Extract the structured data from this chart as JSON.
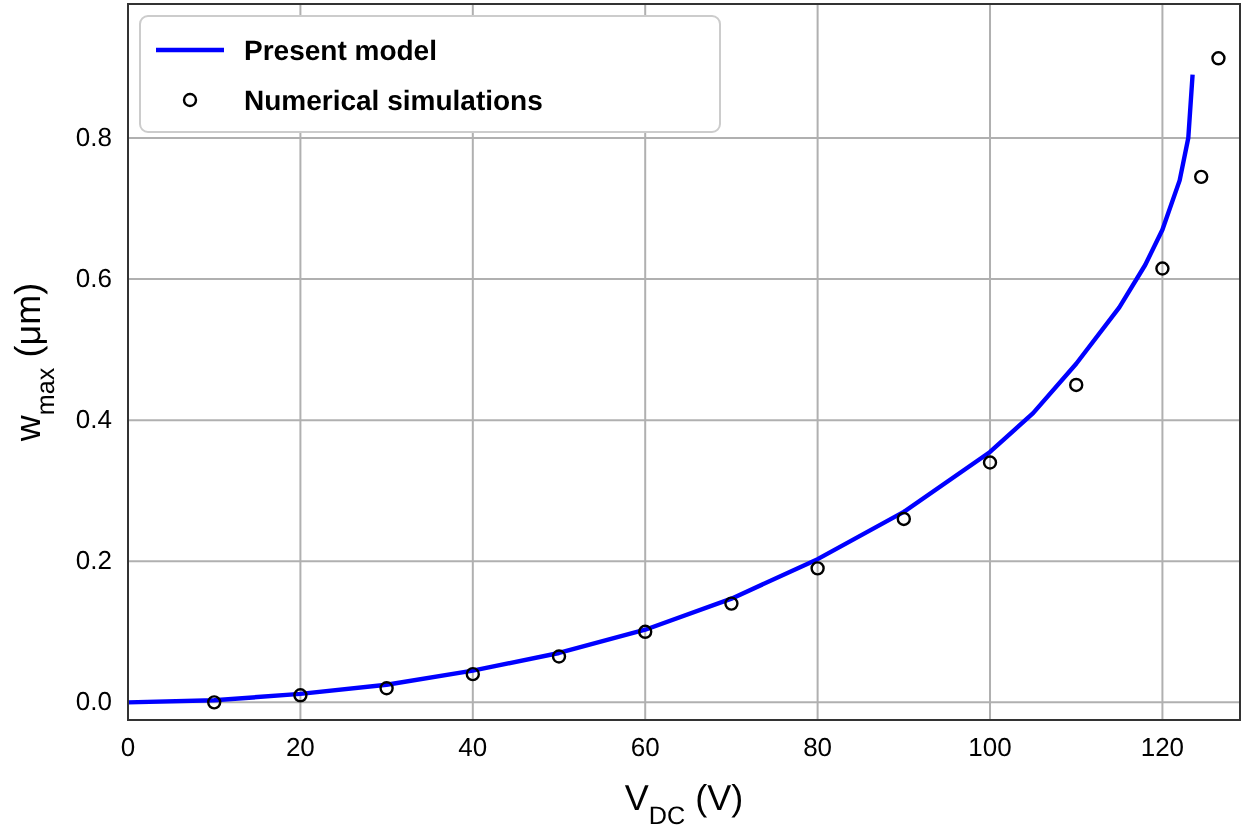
{
  "chart_data": {
    "type": "line",
    "xlabel": "V$_{DC}$ (V)",
    "ylabel": "w$_{max}$ (μm)",
    "xlim": [
      0,
      129
    ],
    "ylim": [
      -0.025,
      0.99
    ],
    "xticks": [
      0,
      20,
      40,
      60,
      80,
      100,
      120
    ],
    "yticks": [
      {
        "value": 0,
        "label": "0.0"
      },
      0.2,
      0.4,
      0.6,
      0.8
    ],
    "grid": true,
    "legend": "top left",
    "series": [
      {
        "name": "Present model",
        "color": "#0000ff",
        "line_style": "solid",
        "x": [
          0,
          10,
          20,
          30,
          40,
          50,
          60,
          70,
          80,
          90,
          100,
          105,
          110,
          115,
          118,
          120,
          122,
          123,
          123.5
        ],
        "values": [
          0,
          0.003,
          0.012,
          0.025,
          0.045,
          0.07,
          0.103,
          0.147,
          0.203,
          0.27,
          0.355,
          0.41,
          0.48,
          0.56,
          0.62,
          0.67,
          0.74,
          0.8,
          0.89
        ]
      },
      {
        "name": "Numerical simulations",
        "type": "scatter",
        "color": "#000000",
        "marker": "circle",
        "x": [
          10,
          20,
          30,
          40,
          50,
          60,
          70,
          80,
          90,
          100,
          110,
          120,
          124.5,
          126.5
        ],
        "values": [
          0,
          0.01,
          0.02,
          0.04,
          0.065,
          0.1,
          0.14,
          0.19,
          0.26,
          0.34,
          0.45,
          0.615,
          0.745,
          0.913
        ]
      }
    ]
  }
}
